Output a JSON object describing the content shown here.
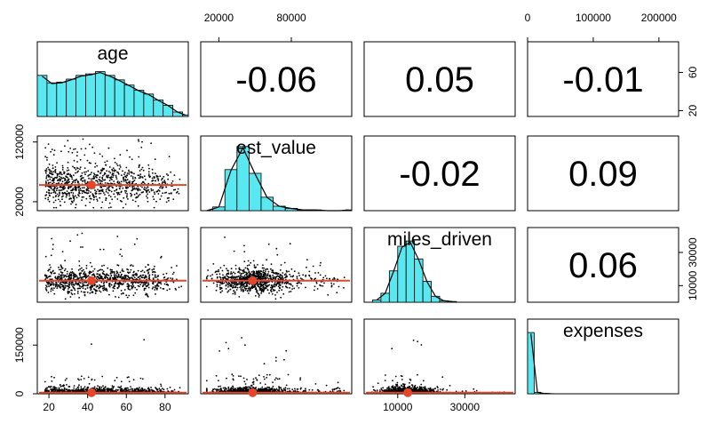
{
  "chart_data": {
    "type": "scatter-matrix",
    "variables": [
      "age",
      "est_value",
      "miles_driven",
      "expenses"
    ],
    "correlations": [
      {
        "row": 0,
        "col": 1,
        "label": "-0.06"
      },
      {
        "row": 0,
        "col": 2,
        "label": "0.05"
      },
      {
        "row": 0,
        "col": 3,
        "label": "-0.01"
      },
      {
        "row": 1,
        "col": 2,
        "label": "-0.02"
      },
      {
        "row": 1,
        "col": 3,
        "label": "0.09"
      },
      {
        "row": 2,
        "col": 3,
        "label": "0.06"
      }
    ],
    "ranges": {
      "age": [
        14,
        92
      ],
      "est_value": [
        5000,
        130000
      ],
      "miles_driven": [
        0,
        45000
      ],
      "expenses": [
        0,
        230000
      ]
    },
    "axes": {
      "bottom": [
        {
          "col": 0,
          "ticks": [
            "20",
            "40",
            "60",
            "80"
          ],
          "values": [
            20,
            40,
            60,
            80
          ]
        },
        {
          "col": 2,
          "ticks": [
            "10000",
            "30000"
          ],
          "values": [
            10000,
            30000
          ]
        }
      ],
      "top": [
        {
          "col": 1,
          "ticks": [
            "20000",
            "80000"
          ],
          "values": [
            20000,
            80000
          ]
        },
        {
          "col": 3,
          "ticks": [
            "0",
            "100000",
            "200000"
          ],
          "values": [
            0,
            100000,
            200000
          ]
        }
      ],
      "left": [
        {
          "row": 1,
          "ticks": [
            "20000",
            "120000"
          ],
          "values": [
            20000,
            120000
          ]
        },
        {
          "row": 3,
          "ticks": [
            "0",
            "150000"
          ],
          "values": [
            0,
            150000
          ]
        }
      ],
      "right": [
        {
          "row": 0,
          "ticks": [
            "20",
            "60"
          ],
          "values": [
            20,
            60
          ]
        },
        {
          "row": 2,
          "ticks": [
            "10000",
            "30000"
          ],
          "values": [
            10000,
            30000
          ]
        }
      ]
    },
    "histograms": {
      "age": {
        "bin_edges": [
          14,
          19,
          24,
          29,
          34,
          39,
          44,
          49,
          54,
          59,
          64,
          69,
          74,
          79,
          84,
          89,
          92
        ],
        "counts": [
          0.55,
          0.45,
          0.46,
          0.5,
          0.55,
          0.57,
          0.6,
          0.55,
          0.49,
          0.42,
          0.35,
          0.3,
          0.22,
          0.15,
          0.06,
          0.02
        ]
      },
      "est_value": {
        "bin_edges": [
          5000,
          15000,
          25000,
          35000,
          45000,
          55000,
          65000,
          75000,
          85000,
          95000,
          105000,
          115000,
          125000,
          130000
        ],
        "counts": [
          0.0,
          0.05,
          0.55,
          0.86,
          0.5,
          0.18,
          0.06,
          0.03,
          0.01,
          0.01,
          0.0,
          0.0,
          0.01
        ]
      },
      "miles_driven": {
        "bin_edges": [
          2500,
          5000,
          7500,
          10000,
          12500,
          15000,
          17500,
          20000,
          22500,
          25000,
          27500
        ],
        "counts": [
          0.03,
          0.12,
          0.42,
          0.75,
          0.82,
          0.58,
          0.28,
          0.08,
          0.02,
          0.01
        ]
      },
      "expenses": {
        "bin_edges": [
          0,
          10000,
          20000,
          30000,
          40000
        ],
        "counts": [
          0.82,
          0.02,
          0.005,
          0.002
        ]
      }
    },
    "centers": {
      "age": 42,
      "est_value": 48000,
      "miles_driven": 13000,
      "expenses": 3500
    }
  }
}
